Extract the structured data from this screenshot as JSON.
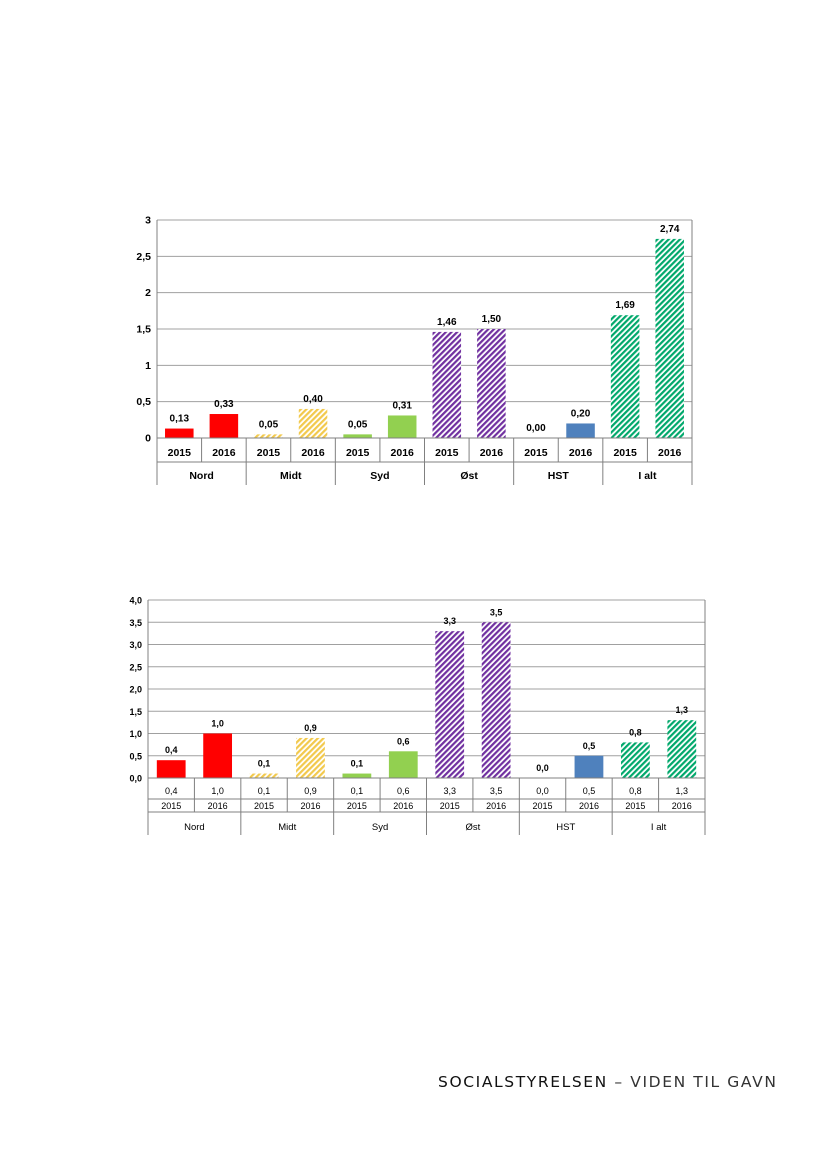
{
  "chart_data": [
    {
      "type": "bar",
      "groups": [
        "Nord",
        "Midt",
        "Syd",
        "Øst",
        "HST",
        "I alt"
      ],
      "years": [
        "2015",
        "2016"
      ],
      "values": [
        0.13,
        0.33,
        0.05,
        0.4,
        0.05,
        0.31,
        1.46,
        1.5,
        0.0,
        0.2,
        1.69,
        2.74
      ],
      "value_labels": [
        "0,13",
        "0,33",
        "0,05",
        "0,40",
        "0,05",
        "0,31",
        "1,46",
        "1,50",
        "0,00",
        "0,20",
        "1,69",
        "2,74"
      ],
      "ylim": [
        0,
        3
      ],
      "yticks": [
        "0",
        "0,5",
        "1",
        "1,5",
        "2",
        "2,5",
        "3"
      ],
      "grid": true,
      "colors": [
        "#ff0000",
        "#ff0000",
        "#f2c94c",
        "#f2c94c",
        "#92d050",
        "#92d050",
        "#7030a0",
        "#7030a0",
        "#4f81bd",
        "#4f81bd",
        "#00a86b",
        "#00a86b"
      ],
      "hatched": [
        false,
        false,
        true,
        true,
        false,
        false,
        true,
        true,
        false,
        false,
        true,
        true
      ]
    },
    {
      "type": "bar",
      "groups": [
        "Nord",
        "Midt",
        "Syd",
        "Øst",
        "HST",
        "I alt"
      ],
      "years": [
        "2015",
        "2016"
      ],
      "values": [
        0.4,
        1.0,
        0.1,
        0.9,
        0.1,
        0.6,
        3.3,
        3.5,
        0.0,
        0.5,
        0.8,
        1.3
      ],
      "value_labels": [
        "0,4",
        "1,0",
        "0,1",
        "0,9",
        "0,1",
        "0,6",
        "3,3",
        "3,5",
        "0,0",
        "0,5",
        "0,8",
        "1,3"
      ],
      "table_values": [
        "0,4",
        "1,0",
        "0,1",
        "0,9",
        "0,1",
        "0,6",
        "3,3",
        "3,5",
        "0,0",
        "0,5",
        "0,8",
        "1,3"
      ],
      "ylim": [
        0,
        4
      ],
      "yticks": [
        "0,0",
        "0,5",
        "1,0",
        "1,5",
        "2,0",
        "2,5",
        "3,0",
        "3,5",
        "4,0"
      ],
      "grid": true,
      "colors": [
        "#ff0000",
        "#ff0000",
        "#f2c94c",
        "#f2c94c",
        "#92d050",
        "#92d050",
        "#7030a0",
        "#7030a0",
        "#4f81bd",
        "#4f81bd",
        "#00a86b",
        "#00a86b"
      ],
      "hatched": [
        false,
        false,
        true,
        true,
        false,
        false,
        true,
        true,
        false,
        false,
        true,
        true
      ]
    }
  ],
  "footer": {
    "brand": "SOCIALSTYRELSEN",
    "tagline": " – VIDEN TIL GAVN"
  }
}
